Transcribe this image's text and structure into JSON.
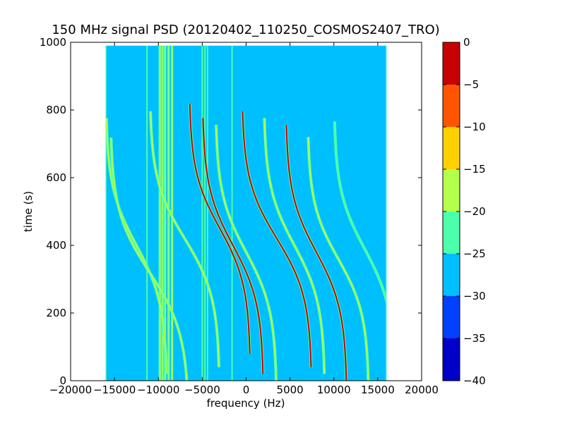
{
  "chart_data": {
    "type": "heatmap",
    "title": "150 MHz signal PSD (20120402_110250_COSMOS2407_TRO)",
    "xlabel": "frequency (Hz)",
    "ylabel": "time (s)",
    "xlim": [
      -20000,
      20000
    ],
    "ylim": [
      0,
      1000
    ],
    "xticks": [
      -20000,
      -15000,
      -10000,
      -5000,
      0,
      5000,
      10000,
      15000,
      20000
    ],
    "xtick_labels": [
      "−20000",
      "−15000",
      "−10000",
      "−5000",
      "0",
      "5000",
      "10000",
      "15000",
      "20000"
    ],
    "yticks": [
      0,
      200,
      400,
      600,
      800,
      1000
    ],
    "ytick_labels": [
      "0",
      "200",
      "400",
      "600",
      "800",
      "1000"
    ],
    "data_extent": {
      "x": [
        -16000,
        16000
      ],
      "y": [
        0,
        990
      ]
    },
    "background_level": "-30 to -25",
    "colorbar": {
      "ticks": [
        0,
        -5,
        -10,
        -15,
        -20,
        -25,
        -30,
        -35,
        -40
      ],
      "tick_labels": [
        "0",
        "−5",
        "−10",
        "−15",
        "−20",
        "−25",
        "−30",
        "−35",
        "−40"
      ],
      "levels": [
        {
          "range": [
            -40,
            -35
          ],
          "color": "#0000c8"
        },
        {
          "range": [
            -35,
            -30
          ],
          "color": "#0040ff"
        },
        {
          "range": [
            -30,
            -25
          ],
          "color": "#00bfff"
        },
        {
          "range": [
            -25,
            -20
          ],
          "color": "#4cffaa"
        },
        {
          "range": [
            -20,
            -15
          ],
          "color": "#b3ff4c"
        },
        {
          "range": [
            -15,
            -10
          ],
          "color": "#ffd100"
        },
        {
          "range": [
            -10,
            -5
          ],
          "color": "#ff5500"
        },
        {
          "range": [
            -5,
            0
          ],
          "color": "#c80000"
        }
      ]
    },
    "vertical_lines_hz": [
      -16000,
      -11300,
      -9900,
      -9600,
      -9300,
      -8900,
      -8500,
      -5000,
      -4700,
      -4400,
      -1600,
      16000
    ],
    "doppler_traces": [
      {
        "center_hz": -12500,
        "center_time_s": 400,
        "half_span_hz": 3500,
        "time_half_span_s": 380,
        "level": "yellow"
      },
      {
        "center_hz": -11000,
        "center_time_s": 320,
        "half_span_hz": 4500,
        "time_half_span_s": 400,
        "level": "yellow"
      },
      {
        "center_hz": -7000,
        "center_time_s": 420,
        "half_span_hz": 4000,
        "time_half_span_s": 380,
        "level": "yellow"
      },
      {
        "center_hz": -3000,
        "center_time_s": 450,
        "half_span_hz": 3500,
        "time_half_span_s": 370,
        "level": "red"
      },
      {
        "center_hz": -1500,
        "center_time_s": 400,
        "half_span_hz": 3500,
        "time_half_span_s": 380,
        "level": "red"
      },
      {
        "center_hz": 0,
        "center_time_s": 380,
        "half_span_hz": 3500,
        "time_half_span_s": 380,
        "level": "yellow"
      },
      {
        "center_hz": 3500,
        "center_time_s": 420,
        "half_span_hz": 4000,
        "time_half_span_s": 380,
        "level": "red"
      },
      {
        "center_hz": 5500,
        "center_time_s": 400,
        "half_span_hz": 3500,
        "time_half_span_s": 380,
        "level": "yellow"
      },
      {
        "center_hz": 8000,
        "center_time_s": 380,
        "half_span_hz": 3500,
        "time_half_span_s": 380,
        "level": "red"
      },
      {
        "center_hz": 10500,
        "center_time_s": 360,
        "half_span_hz": 3500,
        "time_half_span_s": 360,
        "level": "yellow"
      },
      {
        "center_hz": 13500,
        "center_time_s": 390,
        "half_span_hz": 3500,
        "time_half_span_s": 380,
        "level": "green"
      }
    ]
  }
}
